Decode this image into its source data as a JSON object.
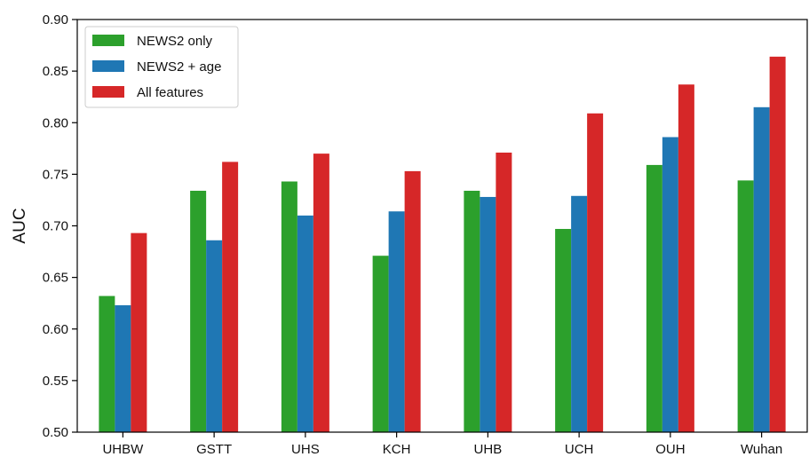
{
  "chart_data": {
    "type": "bar",
    "title": "",
    "xlabel": "",
    "ylabel": "AUC",
    "ylim": [
      0.5,
      0.9
    ],
    "yticks": [
      0.5,
      0.55,
      0.6,
      0.65,
      0.7,
      0.75,
      0.8,
      0.85,
      0.9
    ],
    "categories": [
      "UHBW",
      "GSTT",
      "UHS",
      "KCH",
      "UHB",
      "UCH",
      "OUH",
      "Wuhan"
    ],
    "series": [
      {
        "name": "NEWS2 only",
        "color": "#2ca02c",
        "values": [
          0.632,
          0.734,
          0.743,
          0.671,
          0.734,
          0.697,
          0.759,
          0.744
        ]
      },
      {
        "name": "NEWS2 + age",
        "color": "#1f77b4",
        "values": [
          0.623,
          0.686,
          0.71,
          0.714,
          0.728,
          0.729,
          0.786,
          0.815
        ]
      },
      {
        "name": "All features",
        "color": "#d62728",
        "values": [
          0.693,
          0.762,
          0.77,
          0.753,
          0.771,
          0.809,
          0.837,
          0.864
        ]
      }
    ],
    "legend_position": "top-left",
    "grid": false
  }
}
